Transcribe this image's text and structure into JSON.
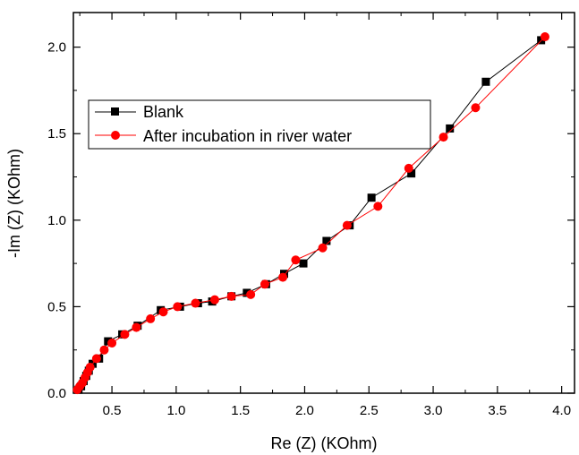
{
  "chart_data": {
    "type": "line",
    "xlabel": "Re (Z) (KOhm)",
    "ylabel": "-Im (Z) (KOhm)",
    "xlim": [
      0.2,
      4.1
    ],
    "ylim": [
      0.0,
      2.2
    ],
    "xticks": [
      "0.5",
      "1.0",
      "1.5",
      "2.0",
      "2.5",
      "3.0",
      "3.5",
      "4.0"
    ],
    "yticks": [
      "0.0",
      "0.5",
      "1.0",
      "1.5",
      "2.0"
    ],
    "xtick_values": [
      0.5,
      1.0,
      1.5,
      2.0,
      2.5,
      3.0,
      3.5,
      4.0
    ],
    "ytick_values": [
      0.0,
      0.5,
      1.0,
      1.5,
      2.0
    ],
    "grid": false,
    "legend_position": "upper-left",
    "series": [
      {
        "name": "Blank",
        "color": "#000000",
        "marker": "square",
        "points": [
          [
            0.24,
            0.02
          ],
          [
            0.26,
            0.04
          ],
          [
            0.28,
            0.07
          ],
          [
            0.3,
            0.1
          ],
          [
            0.32,
            0.13
          ],
          [
            0.35,
            0.17
          ],
          [
            0.4,
            0.2
          ],
          [
            0.47,
            0.3
          ],
          [
            0.58,
            0.34
          ],
          [
            0.7,
            0.39
          ],
          [
            0.88,
            0.48
          ],
          [
            1.03,
            0.5
          ],
          [
            1.17,
            0.52
          ],
          [
            1.28,
            0.53
          ],
          [
            1.43,
            0.56
          ],
          [
            1.55,
            0.58
          ],
          [
            1.7,
            0.63
          ],
          [
            1.84,
            0.69
          ],
          [
            1.99,
            0.75
          ],
          [
            2.17,
            0.88
          ],
          [
            2.35,
            0.97
          ],
          [
            2.52,
            1.13
          ],
          [
            2.83,
            1.27
          ],
          [
            3.13,
            1.53
          ],
          [
            3.41,
            1.8
          ],
          [
            3.84,
            2.04
          ]
        ]
      },
      {
        "name": "After incubation in river water",
        "color": "#ff0000",
        "marker": "circle",
        "points": [
          [
            0.23,
            0.02
          ],
          [
            0.25,
            0.04
          ],
          [
            0.27,
            0.06
          ],
          [
            0.29,
            0.09
          ],
          [
            0.31,
            0.12
          ],
          [
            0.33,
            0.15
          ],
          [
            0.38,
            0.2
          ],
          [
            0.44,
            0.25
          ],
          [
            0.5,
            0.29
          ],
          [
            0.6,
            0.34
          ],
          [
            0.69,
            0.38
          ],
          [
            0.8,
            0.43
          ],
          [
            0.9,
            0.47
          ],
          [
            1.01,
            0.5
          ],
          [
            1.15,
            0.52
          ],
          [
            1.3,
            0.54
          ],
          [
            1.43,
            0.56
          ],
          [
            1.58,
            0.57
          ],
          [
            1.69,
            0.63
          ],
          [
            1.83,
            0.67
          ],
          [
            1.93,
            0.77
          ],
          [
            2.14,
            0.84
          ],
          [
            2.33,
            0.97
          ],
          [
            2.57,
            1.08
          ],
          [
            2.81,
            1.3
          ],
          [
            3.08,
            1.48
          ],
          [
            3.33,
            1.65
          ],
          [
            3.87,
            2.06
          ]
        ]
      }
    ]
  }
}
